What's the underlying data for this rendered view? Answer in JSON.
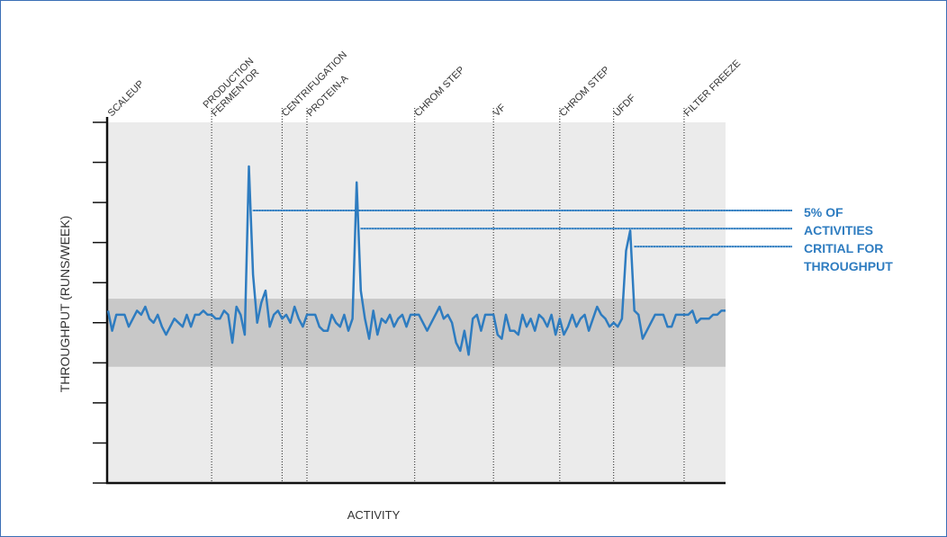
{
  "chart_data": {
    "type": "line",
    "x_label": "ACTIVITY",
    "y_label": "THROUGHPUT (RUNS/WEEK)",
    "xlim": [
      0,
      149
    ],
    "ylim": [
      0,
      9
    ],
    "yticks": [
      0,
      1,
      2,
      3,
      4,
      5,
      6,
      7,
      8,
      9
    ],
    "color": "#2e7cc0",
    "background": "#ebebeb",
    "band": {
      "from": 2.9,
      "to": 4.6,
      "color": "#c8c8c8"
    },
    "phases": [
      {
        "label": [
          "SCALEUP"
        ],
        "x": 0
      },
      {
        "label": [
          "PRODUCTION",
          "FERMENTOR"
        ],
        "x": 25
      },
      {
        "label": [
          "CENTRIFUGATION"
        ],
        "x": 42
      },
      {
        "label": [
          "PROTEIN-A"
        ],
        "x": 48
      },
      {
        "label": [
          "CHROM STEP"
        ],
        "x": 74
      },
      {
        "label": [
          "VF"
        ],
        "x": 93
      },
      {
        "label": [
          "CHROM STEP"
        ],
        "x": 109
      },
      {
        "label": [
          "UFDF"
        ],
        "x": 122
      },
      {
        "label": [
          "FILTER FREEZE"
        ],
        "x": 139
      }
    ],
    "values": [
      4.3,
      3.8,
      4.2,
      4.2,
      4.2,
      3.9,
      4.1,
      4.3,
      4.2,
      4.4,
      4.1,
      4.0,
      4.2,
      3.9,
      3.7,
      3.9,
      4.1,
      4.0,
      3.9,
      4.2,
      3.9,
      4.2,
      4.2,
      4.3,
      4.2,
      4.2,
      4.1,
      4.1,
      4.3,
      4.2,
      3.5,
      4.4,
      4.2,
      3.7,
      7.9,
      5.2,
      4.0,
      4.5,
      4.8,
      3.9,
      4.2,
      4.3,
      4.1,
      4.2,
      4.0,
      4.4,
      4.1,
      3.9,
      4.2,
      4.2,
      4.2,
      3.9,
      3.8,
      3.8,
      4.2,
      4.0,
      3.9,
      4.2,
      3.8,
      4.1,
      7.5,
      4.8,
      4.1,
      3.6,
      4.3,
      3.7,
      4.1,
      4.0,
      4.2,
      3.9,
      4.1,
      4.2,
      3.9,
      4.2,
      4.2,
      4.2,
      4.0,
      3.8,
      4.0,
      4.2,
      4.4,
      4.1,
      4.2,
      4.0,
      3.5,
      3.3,
      3.8,
      3.2,
      4.1,
      4.2,
      3.8,
      4.2,
      4.2,
      4.2,
      3.7,
      3.6,
      4.2,
      3.8,
      3.8,
      3.7,
      4.2,
      3.9,
      4.1,
      3.8,
      4.2,
      4.1,
      3.9,
      4.2,
      3.7,
      4.1,
      3.7,
      3.9,
      4.2,
      3.9,
      4.1,
      4.2,
      3.8,
      4.1,
      4.4,
      4.2,
      4.1,
      3.9,
      4.0,
      3.9,
      4.1,
      5.8,
      6.3,
      4.3,
      4.2,
      3.6,
      3.8,
      4.0,
      4.2,
      4.2,
      4.2,
      3.9,
      3.9,
      4.2,
      4.2,
      4.2,
      4.2,
      4.3,
      4.0,
      4.1,
      4.1,
      4.1,
      4.2,
      4.2,
      4.3,
      4.3
    ],
    "callout": {
      "lines": [
        "5% OF",
        "ACTIVITIES",
        "CRITIAL FOR",
        "THROUGHPUT"
      ],
      "targets": [
        {
          "x": 34,
          "y": 6.8
        },
        {
          "x": 60,
          "y": 6.35
        },
        {
          "x": 126,
          "y": 5.9
        }
      ]
    }
  }
}
